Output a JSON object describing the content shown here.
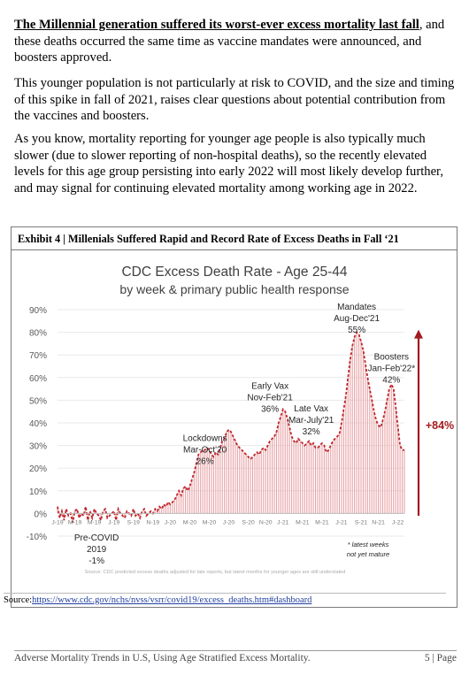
{
  "paragraphs": {
    "p1_lead": "The Millennial generation suffered its worst-ever excess mortality last fall",
    "p1_rest": ", and these deaths occurred the same time as vaccine mandates were announced, and boosters approved.",
    "p2": "This younger population is not particularly at risk to COVID, and the size and timing of this spike in fall of 2021, raises clear questions about potential contribution from the vaccines and boosters.",
    "p3": "As you know, mortality reporting for younger age people is also typically much slower (due to slower reporting of non-hospital deaths), so the recently elevated levels for this age group persisting into early 2022 will most likely develop further, and may signal for continuing elevated mortality among working age in 2022."
  },
  "exhibit": {
    "title": "Exhibit 4 | Millenials Suffered Rapid and Record Rate of Excess Deaths in Fall ‘21"
  },
  "chart_data": {
    "type": "bar",
    "title": "CDC Excess Death Rate - Age 25-44",
    "subtitle": "by week & primary public health response",
    "y_ticks": [
      "90%",
      "80%",
      "70%",
      "60%",
      "50%",
      "40%",
      "30%",
      "20%",
      "10%",
      "0%",
      "-10%"
    ],
    "ylim": [
      -10,
      90
    ],
    "x_ticks": [
      "J-19",
      "M-19",
      "M-19",
      "J-19",
      "S-19",
      "N-19",
      "J-20",
      "M-20",
      "M-20",
      "J-20",
      "S-20",
      "N-20",
      "J-21",
      "M-21",
      "M-21",
      "J-21",
      "S-21",
      "N-21",
      "J-22"
    ],
    "x_tick_week": [
      0,
      8,
      17,
      26,
      35,
      44,
      52,
      61,
      70,
      79,
      88,
      96,
      104,
      113,
      122,
      131,
      140,
      148,
      157
    ],
    "weeks": 161,
    "values": [
      3,
      -2,
      1,
      -3,
      2,
      -1,
      0,
      -4,
      1,
      2,
      -2,
      0,
      -1,
      3,
      -3,
      1,
      -2,
      2,
      0,
      -1,
      -3,
      1,
      2,
      -2,
      -1,
      0,
      1,
      -3,
      2,
      0,
      -1,
      -2,
      1,
      0,
      -1,
      2,
      -1,
      0,
      -2,
      1,
      2,
      -1,
      0,
      1,
      0,
      2,
      1,
      3,
      2,
      4,
      3,
      5,
      4,
      5,
      6,
      8,
      10,
      8,
      11,
      12,
      10,
      12,
      15,
      18,
      22,
      26,
      27,
      28,
      28,
      29,
      28,
      26,
      25,
      27,
      26,
      29,
      32,
      33,
      36,
      37,
      36,
      34,
      32,
      30,
      29,
      28,
      27,
      26,
      25,
      24,
      25,
      26,
      27,
      26,
      28,
      29,
      28,
      30,
      32,
      33,
      34,
      36,
      40,
      43,
      46,
      45,
      42,
      38,
      34,
      32,
      31,
      33,
      32,
      31,
      30,
      31,
      32,
      30,
      31,
      29,
      29,
      30,
      31,
      30,
      27,
      28,
      30,
      32,
      33,
      34,
      35,
      40,
      46,
      52,
      60,
      68,
      74,
      78,
      80,
      79,
      76,
      72,
      66,
      60,
      55,
      50,
      45,
      41,
      39,
      38,
      41,
      45,
      50,
      55,
      57,
      55,
      47,
      38,
      30,
      28,
      28
    ],
    "line_color": "#c0262d",
    "bar_color": "#e8a3a6",
    "arrow_color": "#a31a1f",
    "arrow_label": "+84%",
    "annotations": [
      {
        "lines": [
          "Pre-COVID",
          "2019",
          "-1%"
        ],
        "week": 18,
        "value": -12
      },
      {
        "lines": [
          "Lockdowns",
          "Mar-Oct'20",
          "26%"
        ],
        "week": 68,
        "value": 32
      },
      {
        "lines": [
          "Early Vax",
          "Nov-Feb'21",
          "36%"
        ],
        "week": 98,
        "value": 55
      },
      {
        "lines": [
          "Late Vax",
          "Mar-July'21",
          "32%"
        ],
        "week": 117,
        "value": 45
      },
      {
        "lines": [
          "Mandates",
          "Aug-Dec'21",
          "55%"
        ],
        "week": 138,
        "value": 90
      },
      {
        "lines": [
          "Boosters",
          "Jan-Feb'22*",
          "42%"
        ],
        "week": 154,
        "value": 68
      }
    ],
    "footnote": [
      "* latest weeks",
      "not yet mature"
    ],
    "source_note": "Source: CDC predicted excess deaths adjusted for late reports, but latest months for younger ages are still understated"
  },
  "source": {
    "label": "Source:",
    "url": "https://www.cdc.gov/nchs/nvss/vsrr/covid19/excess_deaths.htm#dashboard"
  },
  "footer": {
    "left": "Adverse Mortality Trends in U.S, Using Age Stratified Excess Mortality.",
    "right": "5 | Page"
  }
}
